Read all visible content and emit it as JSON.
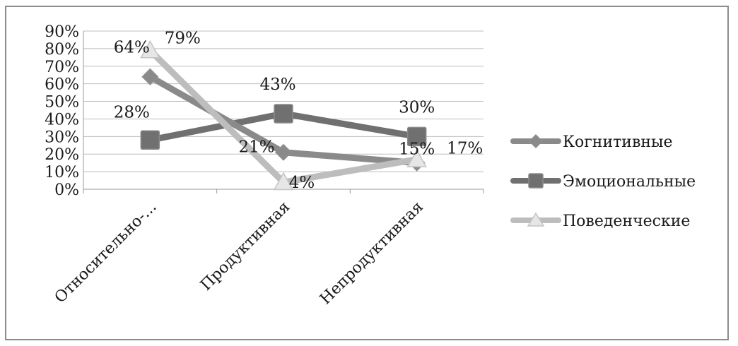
{
  "chart_data": {
    "type": "line",
    "title": "",
    "xlabel": "",
    "ylabel": "",
    "categories": [
      "Относительно-...",
      "Продуктивная",
      "Непродуктивная"
    ],
    "yticks": [
      "0%",
      "10%",
      "20%",
      "30%",
      "40%",
      "50%",
      "60%",
      "70%",
      "80%",
      "90%"
    ],
    "ylim": [
      0,
      90
    ],
    "grid": true,
    "legend_position": "right",
    "series": [
      {
        "name": "Когнитивные",
        "values": [
          64,
          21,
          15
        ],
        "labels": [
          "64%",
          "21%",
          "15%"
        ],
        "marker": "diamond",
        "color": "#8a8a8a"
      },
      {
        "name": "Эмоциональные",
        "values": [
          28,
          43,
          30
        ],
        "labels": [
          "28%",
          "43%",
          "30%"
        ],
        "marker": "square",
        "color": "#707070"
      },
      {
        "name": "Поведенческие",
        "values": [
          79,
          4,
          17
        ],
        "labels": [
          "79%",
          "4%",
          "17%"
        ],
        "marker": "triangle",
        "color": "#bdbdbd"
      }
    ]
  }
}
